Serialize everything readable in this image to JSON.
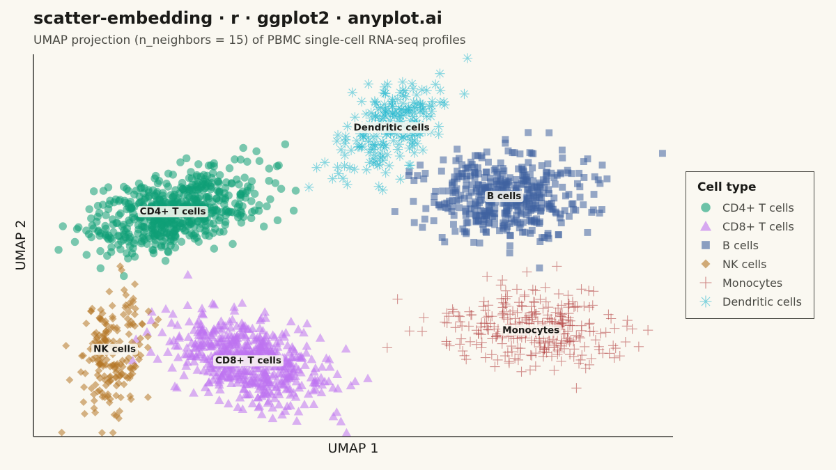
{
  "header": {
    "title": "scatter-embedding · r · ggplot2 · anyplot.ai",
    "subtitle": "UMAP projection (n_neighbors = 15) of PBMC single-cell RNA-seq profiles"
  },
  "legend": {
    "title": "Cell type",
    "placement": "right"
  },
  "chart_data": {
    "type": "scatter",
    "title": "scatter-embedding · r · ggplot2 · anyplot.ai",
    "subtitle": "UMAP projection (n_neighbors = 15) of PBMC single-cell RNA-seq profiles",
    "xlabel": "UMAP 1",
    "ylabel": "UMAP 2",
    "xlim": [
      0,
      100
    ],
    "ylim": [
      0,
      100
    ],
    "grid": false,
    "axis_ticks_shown": false,
    "legend_title": "Cell type",
    "legend_position": "right",
    "series": [
      {
        "name": "CD4+ T cells",
        "shape": "circle",
        "color": "#0E9F77",
        "center": [
          21.8,
          59.0
        ],
        "spread": [
          6.5,
          4.8
        ],
        "tilt": 0.45,
        "count": 560,
        "label": "CD4+ T cells"
      },
      {
        "name": "CD8+ T cells",
        "shape": "triangle",
        "color": "#BE73F0",
        "center": [
          33.6,
          20.0
        ],
        "spread": [
          5.8,
          5.5
        ],
        "tilt": -0.45,
        "count": 540,
        "label": "CD8+ T cells"
      },
      {
        "name": "B cells",
        "shape": "square",
        "color": "#3F63A0",
        "center": [
          73.6,
          63.0
        ],
        "spread": [
          6.0,
          5.6
        ],
        "tilt": 0.0,
        "count": 440,
        "label": "B cells"
      },
      {
        "name": "NK cells",
        "shape": "diamond",
        "color": "#B47626",
        "center": [
          12.7,
          23.0
        ],
        "spread": [
          2.6,
          8.2
        ],
        "tilt": 0.25,
        "count": 190,
        "label": "NK cells"
      },
      {
        "name": "Monocytes",
        "shape": "plus",
        "color": "#B03A3A",
        "center": [
          77.8,
          28.0
        ],
        "spread": [
          7.0,
          5.2
        ],
        "tilt": -0.15,
        "count": 300,
        "label": "Monocytes"
      },
      {
        "name": "Dendritic cells",
        "shape": "asterisk",
        "color": "#25B8CF",
        "center": [
          56.0,
          81.0
        ],
        "spread": [
          4.0,
          5.2
        ],
        "tilt": 0.55,
        "count": 220,
        "label": "Dendritic cells"
      }
    ]
  }
}
